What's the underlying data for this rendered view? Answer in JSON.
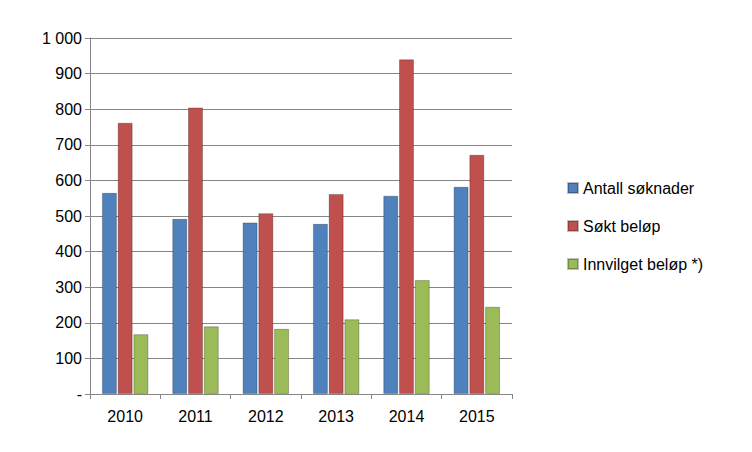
{
  "chart_data": {
    "type": "bar",
    "categories": [
      "2010",
      "2011",
      "2012",
      "2013",
      "2014",
      "2015"
    ],
    "series": [
      {
        "name": "Antall søknader",
        "color": "#4f81bd",
        "values": [
          565,
          492,
          482,
          478,
          557,
          582
        ]
      },
      {
        "name": "Søkt beløp",
        "color": "#c0504d",
        "values": [
          762,
          805,
          508,
          562,
          940,
          672
        ]
      },
      {
        "name": "Innvilget beløp *)",
        "color": "#9bbb59",
        "values": [
          168,
          190,
          183,
          210,
          320,
          245
        ]
      }
    ],
    "ylim": [
      0,
      1000
    ],
    "yticks": [
      {
        "value": 0,
        "label": "-"
      },
      100,
      200,
      300,
      400,
      500,
      600,
      700,
      800,
      900,
      {
        "value": 1000,
        "label": "1 000"
      }
    ],
    "grid": true,
    "legend": "right"
  }
}
